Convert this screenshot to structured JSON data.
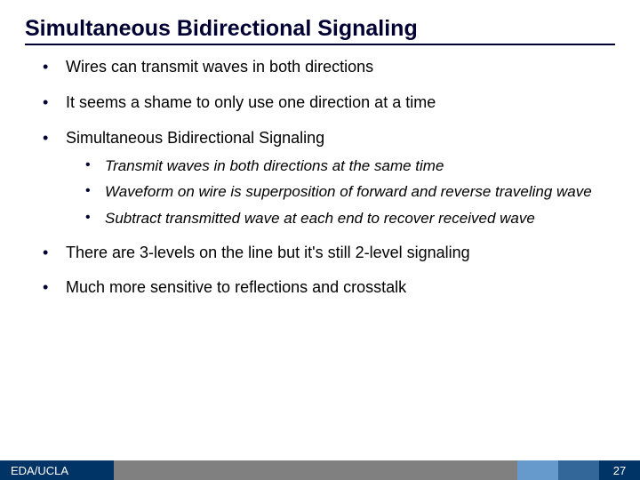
{
  "title": "Simultaneous Bidirectional Signaling",
  "bullets": {
    "b0": "Wires can transmit waves in both directions",
    "b1": "It seems a shame to only use one direction at a time",
    "b2": "Simultaneous Bidirectional Signaling",
    "b2sub": {
      "s0": "Transmit waves in both directions at the same time",
      "s1": "Waveform on wire is superposition of forward and reverse traveling wave",
      "s2": "Subtract transmitted wave at each end to recover received wave"
    },
    "b3": "There are 3-levels on the line but it's still 2-level signaling",
    "b4": "Much more sensitive to reflections and crosstalk"
  },
  "footer": {
    "label": "EDA/UCLA",
    "page": "27"
  },
  "colors": {
    "title": "#000033",
    "footer_dark": "#003366",
    "footer_gray": "#808080",
    "footer_mid": "#6699cc",
    "footer_mid2": "#336699"
  }
}
